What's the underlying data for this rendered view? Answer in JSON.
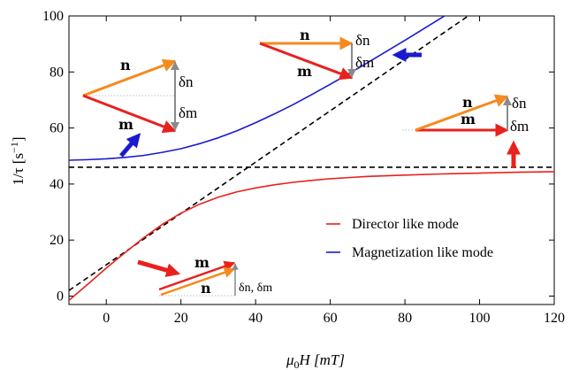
{
  "chart_data": {
    "type": "line",
    "xlim": [
      -10,
      120
    ],
    "ylim": [
      -3,
      100
    ],
    "x_ticks": [
      0,
      20,
      40,
      60,
      80,
      100,
      120
    ],
    "y_ticks": [
      0,
      20,
      40,
      60,
      80,
      100
    ],
    "xlabel_parts": {
      "mu": "μ",
      "sub": "0",
      "rest": "H [mT]"
    },
    "ylabel_parts": {
      "main": "1/τ [s",
      "sup": "−1",
      "end": "]"
    },
    "grid": false,
    "legend_position": "lower-right",
    "series": [
      {
        "name": "Director like mode",
        "color": "#e8211d",
        "points": [
          [
            -10,
            -1.5
          ],
          [
            -5,
            4.2
          ],
          [
            0,
            10.0
          ],
          [
            5,
            15.5
          ],
          [
            10,
            20.8
          ],
          [
            15,
            25.6
          ],
          [
            20,
            29.6
          ],
          [
            25,
            32.8
          ],
          [
            30,
            35.3
          ],
          [
            35,
            37.2
          ],
          [
            40,
            38.6
          ],
          [
            45,
            39.7
          ],
          [
            50,
            40.6
          ],
          [
            55,
            41.3
          ],
          [
            60,
            41.9
          ],
          [
            65,
            42.3
          ],
          [
            70,
            42.7
          ],
          [
            80,
            43.2
          ],
          [
            90,
            43.6
          ],
          [
            100,
            43.9
          ],
          [
            110,
            44.2
          ],
          [
            120,
            44.4
          ]
        ]
      },
      {
        "name": "Magnetization like mode",
        "color": "#1a1acf",
        "points": [
          [
            -10,
            48.5
          ],
          [
            -5,
            48.7
          ],
          [
            0,
            49.0
          ],
          [
            5,
            49.5
          ],
          [
            10,
            50.2
          ],
          [
            15,
            51.3
          ],
          [
            20,
            52.6
          ],
          [
            25,
            54.4
          ],
          [
            30,
            56.5
          ],
          [
            35,
            59.0
          ],
          [
            40,
            61.9
          ],
          [
            45,
            65.0
          ],
          [
            50,
            68.3
          ],
          [
            55,
            71.9
          ],
          [
            60,
            75.6
          ],
          [
            65,
            79.4
          ],
          [
            70,
            83.3
          ],
          [
            75,
            87.3
          ],
          [
            80,
            91.3
          ],
          [
            85,
            95.4
          ],
          [
            90,
            99.5
          ],
          [
            91,
            100.3
          ]
        ]
      }
    ],
    "reference_lines": [
      {
        "style": "dashed",
        "color": "#000000",
        "points": [
          [
            -10,
            46.0
          ],
          [
            120,
            46.0
          ]
        ]
      },
      {
        "style": "dashed",
        "color": "#000000",
        "points": [
          [
            -10,
            2.0
          ],
          [
            97.5,
            100.5
          ]
        ]
      }
    ],
    "annotations": {
      "n": "n",
      "m": "m",
      "dn": "δn",
      "dm": "δm",
      "dn_dm": "δn, δm"
    },
    "colors": {
      "red": "#e8211d",
      "orange": "#f58a1f",
      "blue": "#1a1acf",
      "gray": "#8a8a8a"
    }
  }
}
